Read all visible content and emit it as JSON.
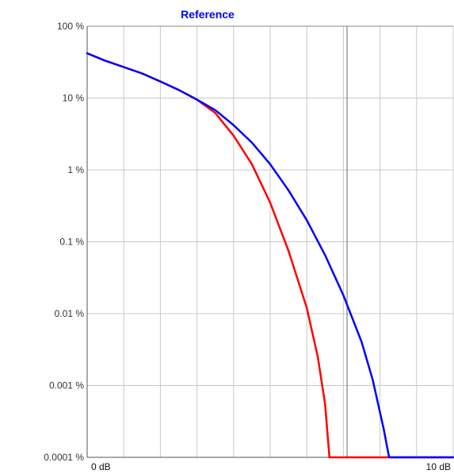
{
  "chart_data": {
    "type": "line",
    "title": "",
    "xlabel": "",
    "ylabel": "",
    "xlim": [
      0,
      10
    ],
    "ylim": [
      0.0001,
      100
    ],
    "y_scale": "log",
    "grid": true,
    "legend": [
      {
        "label": "Reference",
        "color": "#0000ff",
        "placement": "top"
      }
    ],
    "x_tick_labels": [
      "0 dB",
      "10 dB"
    ],
    "x_tick_values": [
      0,
      10
    ],
    "y_tick_labels": [
      "100 %",
      "10 %",
      "1 %",
      "0.1 %",
      "0.01 %",
      "0.001 %",
      "0.0001 %"
    ],
    "y_tick_values": [
      100,
      10,
      1,
      0.1,
      0.01,
      0.001,
      0.0001
    ],
    "x_gridlines": [
      0,
      1,
      2,
      3,
      4,
      5,
      6,
      7,
      8,
      9,
      10
    ],
    "highlight_vertical": 7.1,
    "series": [
      {
        "name": "Reference",
        "color": "#0000ff",
        "points": [
          [
            0,
            42
          ],
          [
            0.5,
            33
          ],
          [
            1,
            27
          ],
          [
            1.5,
            22
          ],
          [
            2,
            17
          ],
          [
            2.5,
            13
          ],
          [
            3,
            9.5
          ],
          [
            3.5,
            6.8
          ],
          [
            4,
            4.2
          ],
          [
            4.5,
            2.4
          ],
          [
            5,
            1.2
          ],
          [
            5.5,
            0.52
          ],
          [
            6,
            0.2
          ],
          [
            6.5,
            0.065
          ],
          [
            7,
            0.018
          ],
          [
            7.5,
            0.004
          ],
          [
            7.8,
            0.0012
          ],
          [
            8.1,
            0.00025
          ],
          [
            8.25,
            0.0001
          ],
          [
            10,
            0.0001
          ]
        ]
      },
      {
        "name": "",
        "color": "#ff0000",
        "points": [
          [
            0,
            42
          ],
          [
            0.5,
            33
          ],
          [
            1,
            27
          ],
          [
            1.5,
            22
          ],
          [
            2,
            17
          ],
          [
            2.5,
            13
          ],
          [
            3,
            9.5
          ],
          [
            3.5,
            6.2
          ],
          [
            4,
            3.0
          ],
          [
            4.5,
            1.2
          ],
          [
            5,
            0.35
          ],
          [
            5.5,
            0.075
          ],
          [
            6,
            0.012
          ],
          [
            6.3,
            0.0025
          ],
          [
            6.5,
            0.00055
          ],
          [
            6.62,
            0.0001
          ],
          [
            10,
            0.0001
          ]
        ]
      }
    ]
  }
}
